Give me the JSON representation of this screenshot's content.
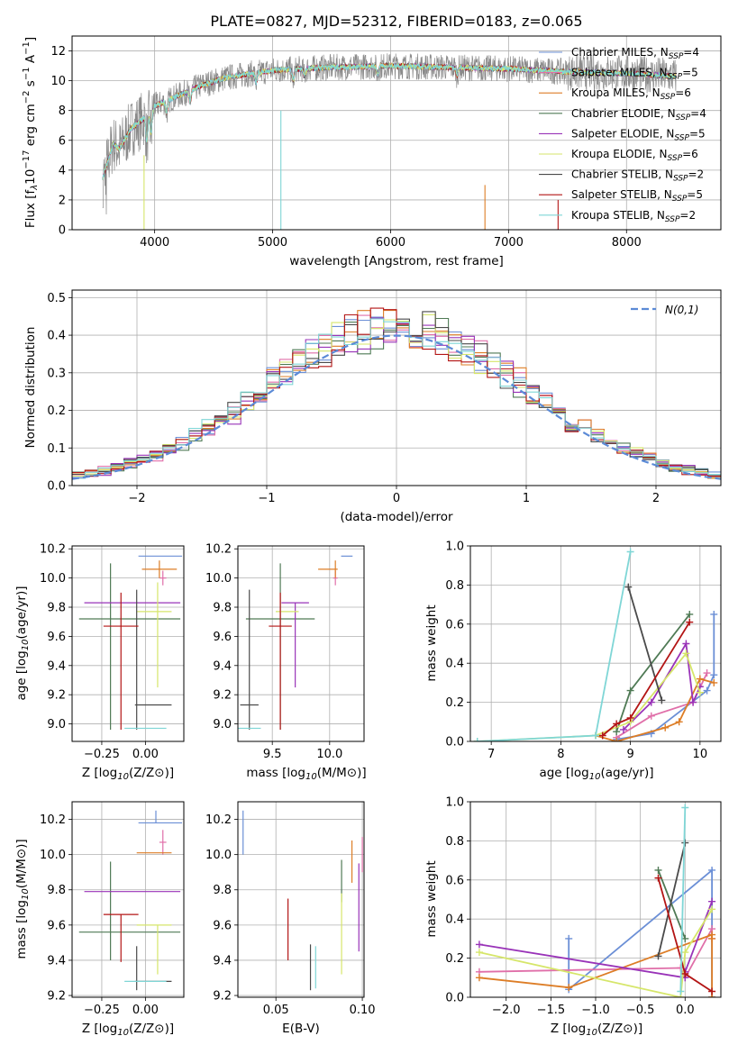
{
  "title": "PLATE=0827, MJD=52312, FIBERID=0183, z=0.065",
  "colors": [
    "#6b8fd6",
    "#e06fa9",
    "#dd7d26",
    "#4f7a55",
    "#9933b8",
    "#d6e66a",
    "#4a4a4a",
    "#b31515",
    "#7fd6d6"
  ],
  "legend_items": [
    {
      "name": "Chabrier MILES, N",
      "sub": "SSP",
      "suffix": "=4"
    },
    {
      "name": "Salpeter MILES, N",
      "sub": "SSP",
      "suffix": "=5"
    },
    {
      "name": "Kroupa MILES, N",
      "sub": "SSP",
      "suffix": "=6"
    },
    {
      "name": "Chabrier ELODIE, N",
      "sub": "SSP",
      "suffix": "=4"
    },
    {
      "name": "Salpeter ELODIE, N",
      "sub": "SSP",
      "suffix": "=5"
    },
    {
      "name": "Kroupa ELODIE, N",
      "sub": "SSP",
      "suffix": "=6"
    },
    {
      "name": "Chabrier STELIB, N",
      "sub": "SSP",
      "suffix": "=2"
    },
    {
      "name": "Salpeter STELIB, N",
      "sub": "SSP",
      "suffix": "=5"
    },
    {
      "name": "Kroupa STELIB, N",
      "sub": "SSP",
      "suffix": "=2"
    }
  ],
  "chart_data": [
    {
      "type": "line",
      "xlabel": "wavelength [Angstrom, rest frame]",
      "ylabel": "Flux [f",
      "xlim": [
        3300,
        8800
      ],
      "ylim": [
        0,
        13
      ],
      "xticks": [
        4000,
        5000,
        6000,
        7000,
        8000
      ],
      "yticks": [
        0,
        2,
        4,
        6,
        8,
        10,
        12
      ],
      "spectrum_knots": {
        "x": [
          3560,
          3650,
          3700,
          3800,
          3900,
          4000,
          4200,
          4400,
          4600,
          5000,
          5500,
          6000,
          6500,
          7000,
          7500,
          8000,
          8400
        ],
        "y": [
          3.5,
          5.8,
          5.4,
          6.8,
          7.4,
          8.3,
          9.0,
          9.7,
          10.2,
          10.7,
          10.9,
          11.0,
          10.9,
          10.8,
          10.6,
          10.5,
          10.3
        ]
      }
    },
    {
      "type": "histogram",
      "xlabel": "(data-model)/error",
      "ylabel": "Normed distribution",
      "xlim": [
        -2.5,
        2.5
      ],
      "ylim": [
        0,
        0.52
      ],
      "xticks": [
        -2,
        -1,
        0,
        1,
        2
      ],
      "yticks": [
        0.0,
        0.1,
        0.2,
        0.3,
        0.4,
        0.5
      ],
      "reference_label": "N(0,1)",
      "bin_width": 0.1
    },
    {
      "type": "scatter",
      "xlabel": "Z [log10(Z/Z⊙)]",
      "ylabel": "age  [log10(age/yr)]",
      "xlim": [
        -0.42,
        0.22
      ],
      "ylim": [
        8.88,
        10.22
      ],
      "xticks": [
        -0.25,
        0.0
      ],
      "yticks": [
        9.0,
        9.2,
        9.4,
        9.6,
        9.8,
        10.0,
        10.2
      ],
      "points": [
        {
          "x": 0.06,
          "y": 10.15,
          "xl": 0.1,
          "xr": 0.15,
          "yl": 0.0,
          "yh": 0.0
        },
        {
          "x": 0.1,
          "y": 10.0,
          "xl": 0.02,
          "xr": 0.02,
          "yl": 0.05,
          "yh": 0.05
        },
        {
          "x": 0.08,
          "y": 10.06,
          "xl": 0.1,
          "xr": 0.1,
          "yl": 0.06,
          "yh": 0.06
        },
        {
          "x": -0.2,
          "y": 9.72,
          "xl": 0.18,
          "xr": 0.4,
          "yl": 0.76,
          "yh": 0.38
        },
        {
          "x": -0.05,
          "y": 9.83,
          "xl": 0.3,
          "xr": 0.25,
          "yl": 0.0,
          "yh": 0.0
        },
        {
          "x": 0.07,
          "y": 9.77,
          "xl": 0.12,
          "xr": 0.08,
          "yl": 0.52,
          "yh": 0.2
        },
        {
          "x": -0.05,
          "y": 9.13,
          "xl": 0.01,
          "xr": 0.2,
          "yl": 0.17,
          "yh": 0.79
        },
        {
          "x": -0.14,
          "y": 9.67,
          "xl": 0.1,
          "xr": 0.1,
          "yl": 0.71,
          "yh": 0.23
        },
        {
          "x": 0.0,
          "y": 8.97,
          "xl": 0.12,
          "xr": 0.12,
          "yl": 0.0,
          "yh": 0.0
        }
      ]
    },
    {
      "type": "scatter",
      "xlabel": "mass [log10(M/M⊙)]",
      "ylabel": "",
      "xlim": [
        9.2,
        10.3
      ],
      "ylim": [
        8.88,
        10.22
      ],
      "xticks": [
        9.5,
        10.0
      ],
      "yticks": [
        9.0,
        9.2,
        9.4,
        9.6,
        9.8,
        10.0,
        10.2
      ],
      "points": [
        {
          "x": 10.2,
          "y": 10.15,
          "xl": 0.1,
          "xr": 0.0,
          "yl": 0.0,
          "yh": 0.0
        },
        {
          "x": 10.05,
          "y": 10.0,
          "xl": 0.02,
          "xr": 0.02,
          "yl": 0.05,
          "yh": 0.05
        },
        {
          "x": 10.05,
          "y": 10.06,
          "xl": 0.15,
          "xr": 0.02,
          "yl": 0.06,
          "yh": 0.06
        },
        {
          "x": 9.57,
          "y": 9.72,
          "xl": 0.3,
          "xr": 0.3,
          "yl": 0.76,
          "yh": 0.38
        },
        {
          "x": 9.7,
          "y": 9.83,
          "xl": 0.12,
          "xr": 0.12,
          "yl": 0.58,
          "yh": 0.0
        },
        {
          "x": 9.65,
          "y": 9.77,
          "xl": 0.12,
          "xr": 0.08,
          "yl": 0.0,
          "yh": 0.0
        },
        {
          "x": 9.3,
          "y": 9.13,
          "xl": 0.08,
          "xr": 0.08,
          "yl": 0.17,
          "yh": 0.79
        },
        {
          "x": 9.57,
          "y": 9.67,
          "xl": 0.1,
          "xr": 0.1,
          "yl": 0.71,
          "yh": 0.23
        },
        {
          "x": 9.3,
          "y": 8.97,
          "xl": 0.1,
          "xr": 0.1,
          "yl": 0.0,
          "yh": 0.0
        }
      ]
    },
    {
      "type": "line",
      "xlabel": "age  [log10(age/yr)]",
      "ylabel": "mass weight",
      "xlim": [
        6.7,
        10.3
      ],
      "ylim": [
        0,
        1.0
      ],
      "xticks": [
        7,
        8,
        9,
        10
      ],
      "yticks": [
        0.0,
        0.2,
        0.4,
        0.6,
        0.8,
        1.0
      ],
      "series": [
        {
          "x": [
            8.8,
            9.3,
            10.1,
            10.2,
            10.2
          ],
          "y": [
            0.01,
            0.04,
            0.26,
            0.34,
            0.65
          ]
        },
        {
          "x": [
            8.8,
            9.3,
            9.9,
            10.1
          ],
          "y": [
            0.02,
            0.13,
            0.2,
            0.35
          ]
        },
        {
          "x": [
            8.5,
            8.8,
            9.5,
            9.7,
            10.0,
            10.2
          ],
          "y": [
            0.03,
            0.0,
            0.07,
            0.1,
            0.32,
            0.3
          ]
        },
        {
          "x": [
            8.8,
            9.0,
            9.85
          ],
          "y": [
            0.05,
            0.26,
            0.65
          ]
        },
        {
          "x": [
            8.9,
            9.3,
            9.8,
            9.9,
            10.0
          ],
          "y": [
            0.06,
            0.2,
            0.5,
            0.2,
            0.28
          ]
        },
        {
          "x": [
            6.8,
            8.5,
            9.0,
            9.8,
            10.0
          ],
          "y": [
            0.0,
            0.03,
            0.1,
            0.45,
            0.25
          ]
        },
        {
          "x": [
            8.97,
            9.45
          ],
          "y": [
            0.79,
            0.21
          ]
        },
        {
          "x": [
            8.6,
            8.8,
            9.0,
            9.85
          ],
          "y": [
            0.03,
            0.09,
            0.12,
            0.61
          ]
        },
        {
          "x": [
            6.8,
            8.5,
            9.0
          ],
          "y": [
            0.0,
            0.03,
            0.97
          ]
        }
      ]
    },
    {
      "type": "scatter",
      "xlabel": "Z [log10(Z/Z⊙)]",
      "ylabel": "mass [log10(M/M⊙)]",
      "xlim": [
        -0.42,
        0.22
      ],
      "ylim": [
        9.19,
        10.3
      ],
      "xticks": [
        -0.25,
        0.0
      ],
      "yticks": [
        9.2,
        9.4,
        9.6,
        9.8,
        10.0,
        10.2
      ],
      "points": [
        {
          "x": 0.06,
          "y": 10.18,
          "xl": 0.1,
          "xr": 0.15,
          "yl": 0.0,
          "yh": 0.07
        },
        {
          "x": 0.1,
          "y": 10.07,
          "xl": 0.02,
          "xr": 0.02,
          "yl": 0.07,
          "yh": 0.07
        },
        {
          "x": 0.05,
          "y": 10.01,
          "xl": 0.1,
          "xr": 0.1,
          "yl": 0.0,
          "yh": 0.0
        },
        {
          "x": -0.2,
          "y": 9.56,
          "xl": 0.18,
          "xr": 0.4,
          "yl": 0.16,
          "yh": 0.4
        },
        {
          "x": -0.05,
          "y": 9.79,
          "xl": 0.3,
          "xr": 0.25,
          "yl": 0.0,
          "yh": 0.0
        },
        {
          "x": 0.07,
          "y": 9.6,
          "xl": 0.12,
          "xr": 0.08,
          "yl": 0.28,
          "yh": 0.0
        },
        {
          "x": -0.05,
          "y": 9.28,
          "xl": 0.01,
          "xr": 0.2,
          "yl": 0.05,
          "yh": 0.2
        },
        {
          "x": -0.14,
          "y": 9.66,
          "xl": 0.1,
          "xr": 0.1,
          "yl": 0.27,
          "yh": 0.0
        },
        {
          "x": 0.0,
          "y": 9.28,
          "xl": 0.12,
          "xr": 0.12,
          "yl": 0.0,
          "yh": 0.0
        }
      ]
    },
    {
      "type": "scatter",
      "xlabel": "E(B-V)",
      "ylabel": "",
      "xlim": [
        0.028,
        0.101
      ],
      "ylim": [
        9.19,
        10.3
      ],
      "xticks": [
        0.05,
        0.1
      ],
      "yticks": [
        9.2,
        9.4,
        9.6,
        9.8,
        10.0,
        10.2
      ],
      "points": [
        {
          "x": 0.031,
          "y": 10.12,
          "xl": 0.0,
          "xr": 0.0,
          "yl": 0.12,
          "yh": 0.13
        },
        {
          "x": 0.1,
          "y": 10.0,
          "xl": 0.0,
          "xr": 0.0,
          "yl": 0.1,
          "yh": 0.1
        },
        {
          "x": 0.094,
          "y": 9.95,
          "xl": 0.0,
          "xr": 0.0,
          "yl": 0.11,
          "yh": 0.13
        },
        {
          "x": 0.088,
          "y": 9.85,
          "xl": 0.0,
          "xr": 0.0,
          "yl": 0.12,
          "yh": 0.12
        },
        {
          "x": 0.098,
          "y": 9.7,
          "xl": 0.0,
          "xr": 0.0,
          "yl": 0.25,
          "yh": 0.25
        },
        {
          "x": 0.088,
          "y": 9.65,
          "xl": 0.0,
          "xr": 0.0,
          "yl": 0.33,
          "yh": 0.13
        },
        {
          "x": 0.07,
          "y": 9.37,
          "xl": 0.0,
          "xr": 0.0,
          "yl": 0.14,
          "yh": 0.12
        },
        {
          "x": 0.057,
          "y": 9.57,
          "xl": 0.0,
          "xr": 0.0,
          "yl": 0.17,
          "yh": 0.18
        },
        {
          "x": 0.073,
          "y": 9.34,
          "xl": 0.0,
          "xr": 0.0,
          "yl": 0.1,
          "yh": 0.14
        }
      ]
    },
    {
      "type": "line",
      "xlabel": "Z [log10(Z/Z⊙)]",
      "ylabel": "mass weight",
      "xlim": [
        -2.4,
        0.4
      ],
      "ylim": [
        0,
        1.0
      ],
      "xticks": [
        -2.0,
        -1.5,
        -1.0,
        -0.5,
        0.0
      ],
      "yticks": [
        0.0,
        0.2,
        0.4,
        0.6,
        0.8,
        1.0
      ],
      "series": [
        {
          "x": [
            -1.3,
            -1.3,
            0.3,
            0.3
          ],
          "y": [
            0.3,
            0.04,
            0.65,
            0.0
          ]
        },
        {
          "x": [
            -2.3,
            -0.05,
            0.0,
            0.3,
            0.3
          ],
          "y": [
            0.13,
            0.15,
            0.1,
            0.35,
            0.3
          ]
        },
        {
          "x": [
            -2.3,
            -1.3,
            0.3,
            0.3,
            0.3
          ],
          "y": [
            0.1,
            0.05,
            0.32,
            0.3,
            0.0
          ]
        },
        {
          "x": [
            -0.3,
            0.0
          ],
          "y": [
            0.65,
            0.3
          ]
        },
        {
          "x": [
            -2.3,
            0.0,
            0.0,
            0.3
          ],
          "y": [
            0.27,
            0.1,
            0.13,
            0.49
          ]
        },
        {
          "x": [
            -2.3,
            -0.05,
            0.0,
            0.3
          ],
          "y": [
            0.23,
            0.0,
            0.23,
            0.45
          ]
        },
        {
          "x": [
            -0.3,
            0.0
          ],
          "y": [
            0.21,
            0.79
          ]
        },
        {
          "x": [
            -0.3,
            0.0,
            0.3
          ],
          "y": [
            0.61,
            0.12,
            0.03
          ]
        },
        {
          "x": [
            -0.05,
            0.0
          ],
          "y": [
            0.03,
            0.97
          ]
        }
      ]
    }
  ]
}
